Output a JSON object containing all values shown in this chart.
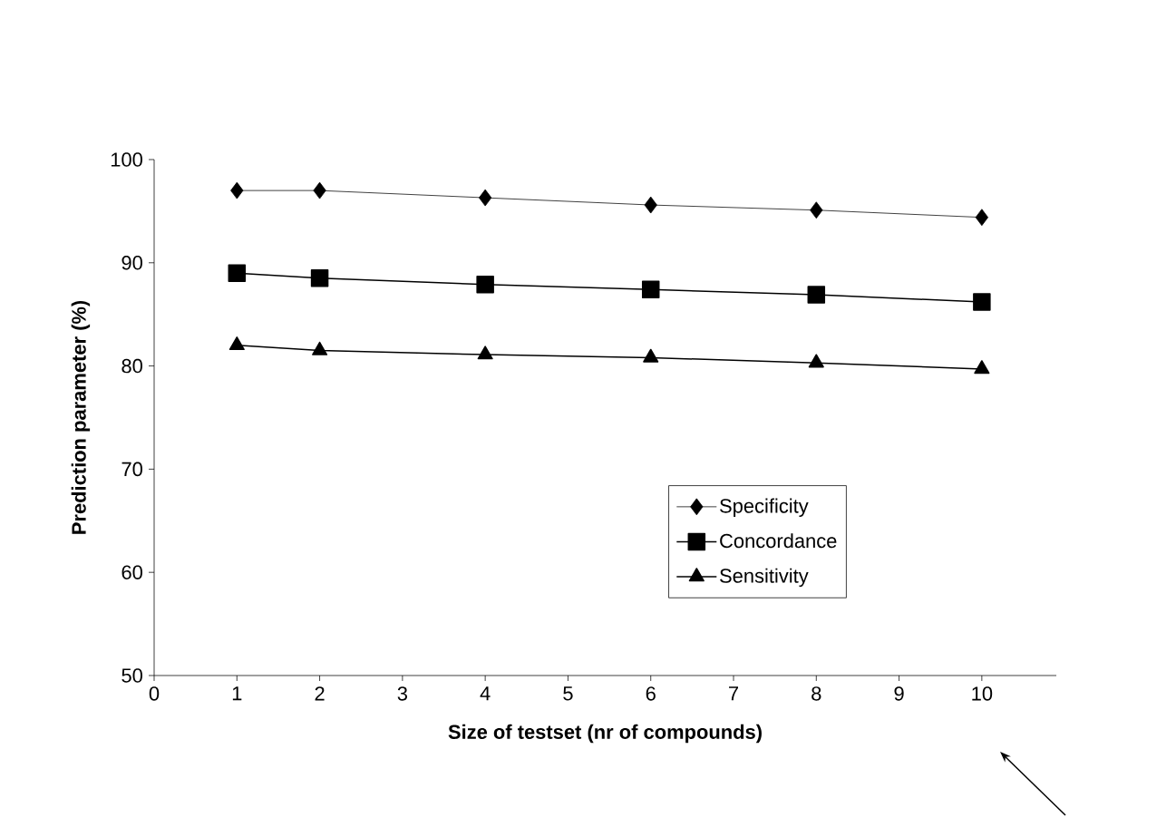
{
  "chart_data": {
    "type": "line",
    "xlabel": "Size of testset (nr of compounds)",
    "ylabel": "Prediction parameter (%)",
    "x": [
      1,
      2,
      4,
      6,
      8,
      10
    ],
    "series": [
      {
        "name": "Specificity",
        "color": "#000000",
        "marker": "diamond",
        "values": [
          97.0,
          97.0,
          96.3,
          95.6,
          95.1,
          94.4
        ]
      },
      {
        "name": "Concordance",
        "color": "#000000",
        "marker": "square",
        "values": [
          89.0,
          88.5,
          87.9,
          87.4,
          86.9,
          86.2
        ]
      },
      {
        "name": "Sensitivity",
        "color": "#000000",
        "marker": "triangle",
        "values": [
          82.0,
          81.5,
          81.1,
          80.8,
          80.3,
          79.7
        ]
      }
    ],
    "xlim": [
      0,
      10.9
    ],
    "xticks": [
      0,
      1,
      2,
      3,
      4,
      5,
      6,
      7,
      8,
      9,
      10
    ],
    "ylim": [
      50,
      100
    ],
    "yticks": [
      50,
      60,
      70,
      80,
      90,
      100
    ],
    "grid": false,
    "legend": "right",
    "line_style": "solid"
  }
}
